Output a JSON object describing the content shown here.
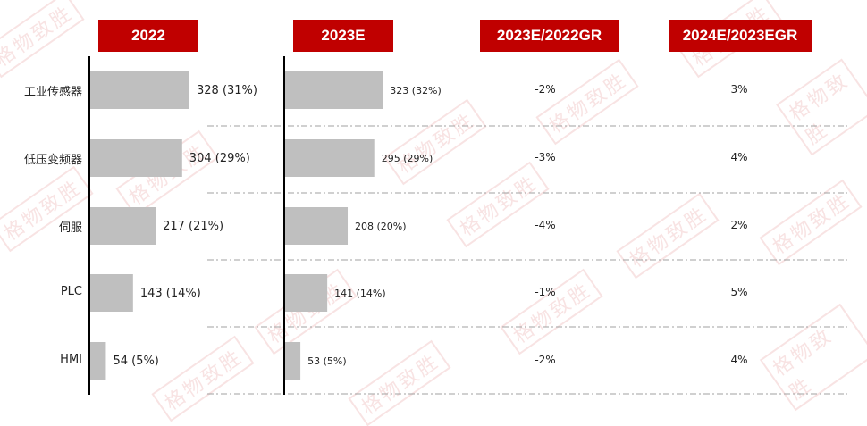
{
  "headers": [
    "2022",
    "2023E",
    "2023E/2022GR",
    "2024E/2023EGR"
  ],
  "watermark": "格物致胜",
  "colors": {
    "header_bg": "#c00000",
    "bar": "#bfbfbf",
    "axis": "#000000",
    "separator": "#a0a0a0"
  },
  "chart_data": {
    "type": "bar",
    "orientation": "horizontal",
    "categories": [
      "工业传感器",
      "低压变频器",
      "伺服",
      "PLC",
      "HMI"
    ],
    "series": [
      {
        "values": [
          328,
          304,
          217,
          143,
          54
        ],
        "labels": [
          "328 (31%)",
          "304 (29%)",
          "217 (21%)",
          "143 (14%)",
          "54 (5%)"
        ]
      },
      {
        "values": [
          323,
          295,
          208,
          141,
          53
        ],
        "labels": [
          "323 (32%)",
          "295 (29%)",
          "208 (20%)",
          "141 (14%)",
          "53 (5%)"
        ]
      }
    ],
    "growth_2023E_2022": [
      "-2%",
      "-3%",
      "-4%",
      "-1%",
      "-2%"
    ],
    "growth_2024E_2023E": [
      "3%",
      "4%",
      "2%",
      "5%",
      "4%"
    ]
  }
}
